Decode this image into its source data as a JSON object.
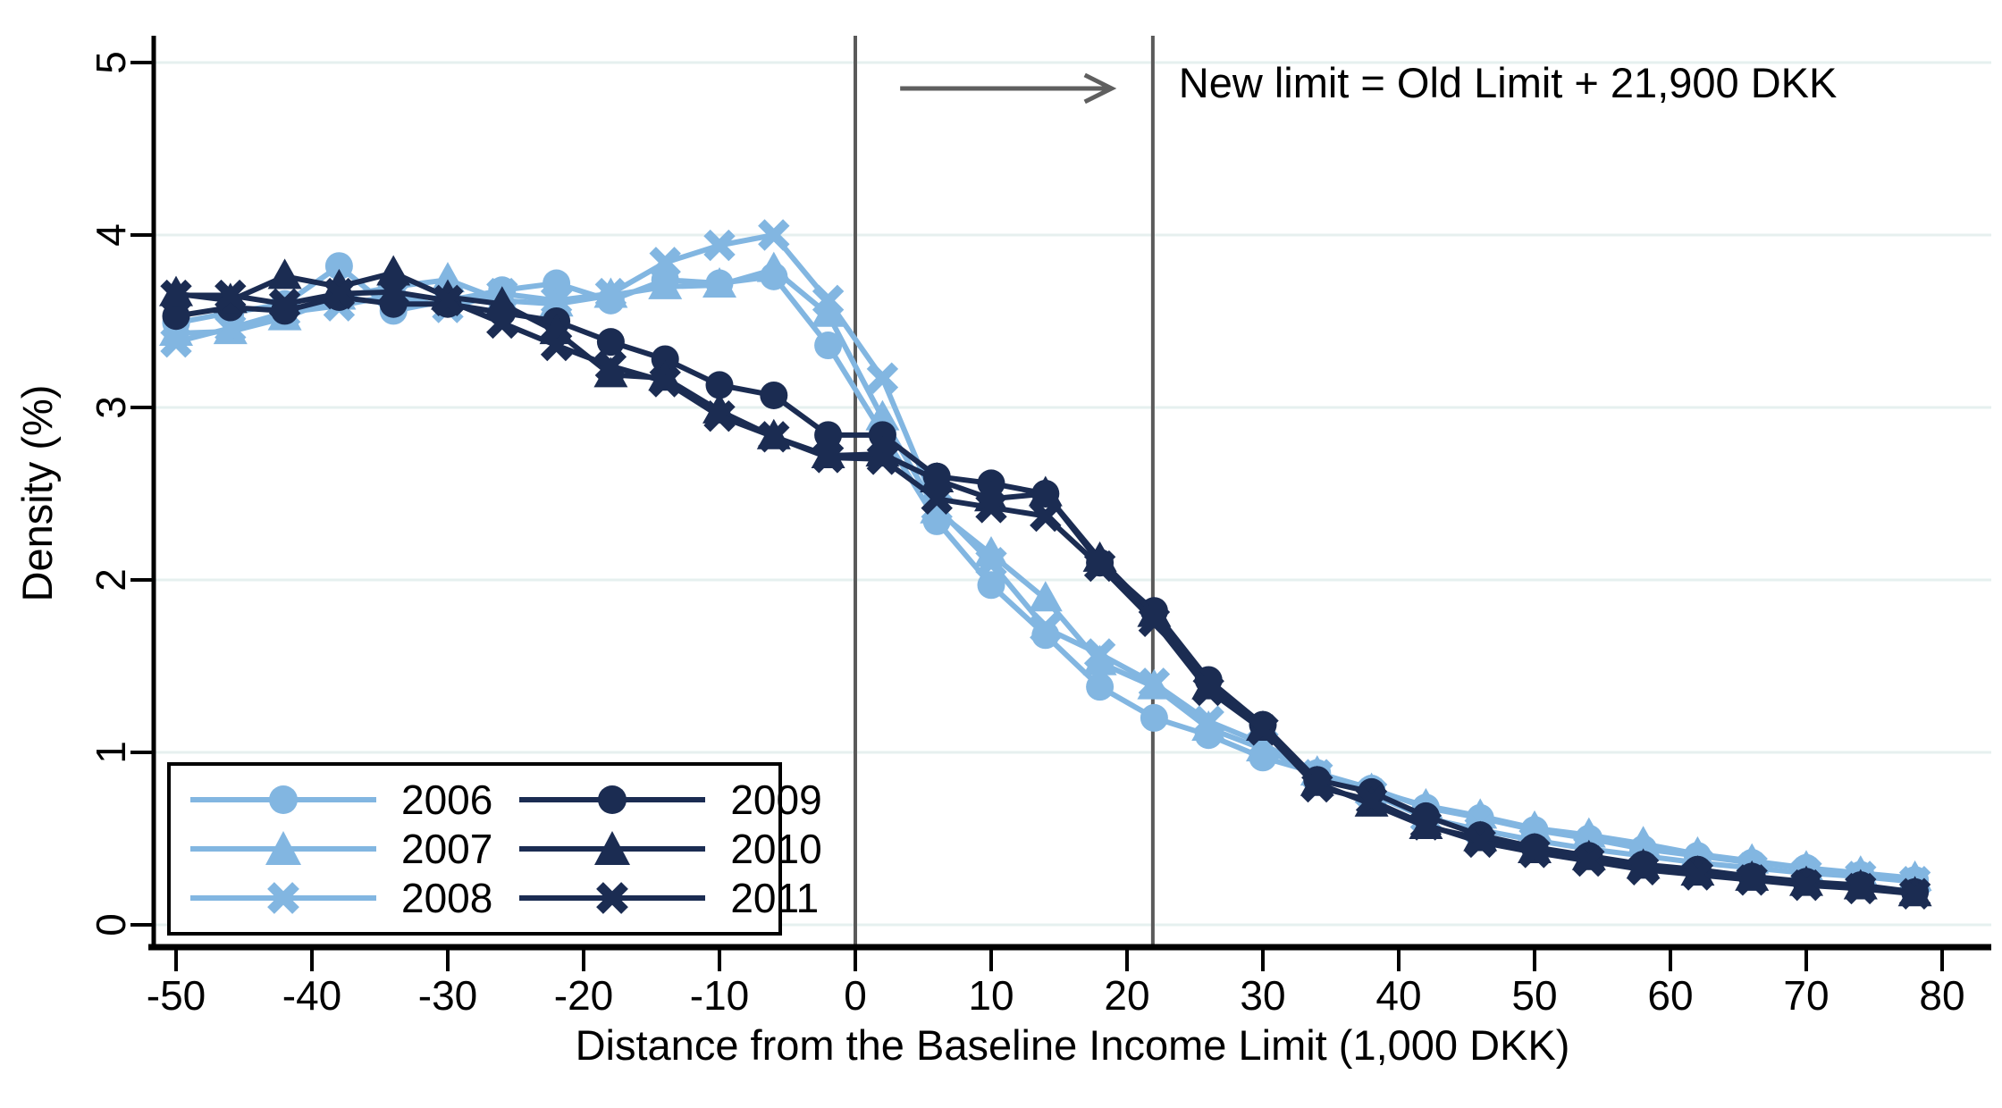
{
  "chart_data": {
    "type": "line",
    "title": "",
    "xlabel": "Distance from the Baseline Income Limit (1,000 DKK)",
    "ylabel": "Density (%)",
    "xlim": [
      -52,
      82
    ],
    "ylim": [
      0,
      5
    ],
    "x_ticks": [
      -50,
      -40,
      -30,
      -20,
      -10,
      0,
      10,
      20,
      30,
      40,
      50,
      60,
      70,
      80
    ],
    "y_ticks": [
      0,
      1,
      2,
      3,
      4,
      5
    ],
    "grid": "horizontal",
    "legend_position": "bottom-left",
    "x": [
      -50,
      -46,
      -42,
      -38,
      -34,
      -30,
      -26,
      -22,
      -18,
      -14,
      -10,
      -6,
      -2,
      2,
      6,
      10,
      14,
      18,
      22,
      26,
      30,
      34,
      38,
      42,
      46,
      50,
      54,
      58,
      62,
      66,
      70,
      74,
      78
    ],
    "series": [
      {
        "name": "2006",
        "color": "#82b6e1",
        "marker": "circle",
        "values": [
          3.49,
          3.55,
          3.6,
          3.82,
          3.56,
          3.62,
          3.68,
          3.72,
          3.62,
          3.74,
          3.72,
          3.76,
          3.36,
          2.85,
          2.34,
          1.97,
          1.68,
          1.38,
          1.2,
          1.1,
          0.97,
          0.88,
          0.79,
          0.68,
          0.62,
          0.55,
          0.5,
          0.44,
          0.4,
          0.36,
          0.33,
          0.29,
          0.26
        ]
      },
      {
        "name": "2007",
        "color": "#82b6e1",
        "marker": "triangle",
        "values": [
          3.43,
          3.44,
          3.52,
          3.64,
          3.7,
          3.74,
          3.62,
          3.6,
          3.65,
          3.7,
          3.71,
          3.8,
          3.54,
          2.94,
          2.4,
          2.15,
          1.89,
          1.52,
          1.38,
          1.14,
          1.02,
          0.88,
          0.78,
          0.69,
          0.63,
          0.56,
          0.52,
          0.47,
          0.41,
          0.37,
          0.33,
          0.3,
          0.27
        ]
      },
      {
        "name": "2008",
        "color": "#82b6e1",
        "marker": "x",
        "values": [
          3.38,
          3.46,
          3.55,
          3.59,
          3.65,
          3.58,
          3.66,
          3.62,
          3.66,
          3.84,
          3.94,
          4.0,
          3.62,
          3.17,
          2.42,
          2.1,
          1.72,
          1.57,
          1.4,
          1.18,
          1.05,
          0.87,
          0.76,
          0.62,
          0.55,
          0.49,
          0.44,
          0.4,
          0.36,
          0.33,
          0.3,
          0.28,
          0.25
        ]
      },
      {
        "name": "2009",
        "color": "#1b2c52",
        "marker": "circle",
        "values": [
          3.53,
          3.58,
          3.56,
          3.64,
          3.6,
          3.6,
          3.55,
          3.5,
          3.38,
          3.28,
          3.13,
          3.07,
          2.84,
          2.84,
          2.6,
          2.56,
          2.5,
          2.1,
          1.82,
          1.42,
          1.16,
          0.84,
          0.77,
          0.63,
          0.52,
          0.45,
          0.4,
          0.35,
          0.32,
          0.28,
          0.25,
          0.23,
          0.19
        ]
      },
      {
        "name": "2010",
        "color": "#1b2c52",
        "marker": "triangle",
        "values": [
          3.66,
          3.62,
          3.76,
          3.7,
          3.78,
          3.64,
          3.6,
          3.44,
          3.19,
          3.17,
          2.98,
          2.83,
          2.72,
          2.73,
          2.58,
          2.47,
          2.5,
          2.12,
          1.8,
          1.38,
          1.14,
          0.82,
          0.7,
          0.57,
          0.5,
          0.43,
          0.39,
          0.34,
          0.3,
          0.27,
          0.24,
          0.22,
          0.18
        ]
      },
      {
        "name": "2011",
        "color": "#1b2c52",
        "marker": "x",
        "values": [
          3.65,
          3.65,
          3.6,
          3.66,
          3.67,
          3.62,
          3.49,
          3.36,
          3.24,
          3.15,
          2.95,
          2.83,
          2.71,
          2.7,
          2.47,
          2.42,
          2.37,
          2.08,
          1.76,
          1.36,
          1.13,
          0.8,
          0.72,
          0.58,
          0.48,
          0.42,
          0.37,
          0.32,
          0.29,
          0.26,
          0.23,
          0.21,
          0.18
        ]
      }
    ],
    "reference_lines": [
      {
        "x": 0,
        "color": "#5a5a5a"
      },
      {
        "x": 21.9,
        "color": "#5a5a5a"
      }
    ],
    "annotation": {
      "text": "New limit = Old Limit + 21,900 DKK",
      "text_x": 23.8,
      "y": 4.85,
      "arrow": {
        "from_x": 3.3,
        "to_x": 18.6,
        "y": 4.85,
        "color": "#5f5f5f"
      }
    }
  }
}
